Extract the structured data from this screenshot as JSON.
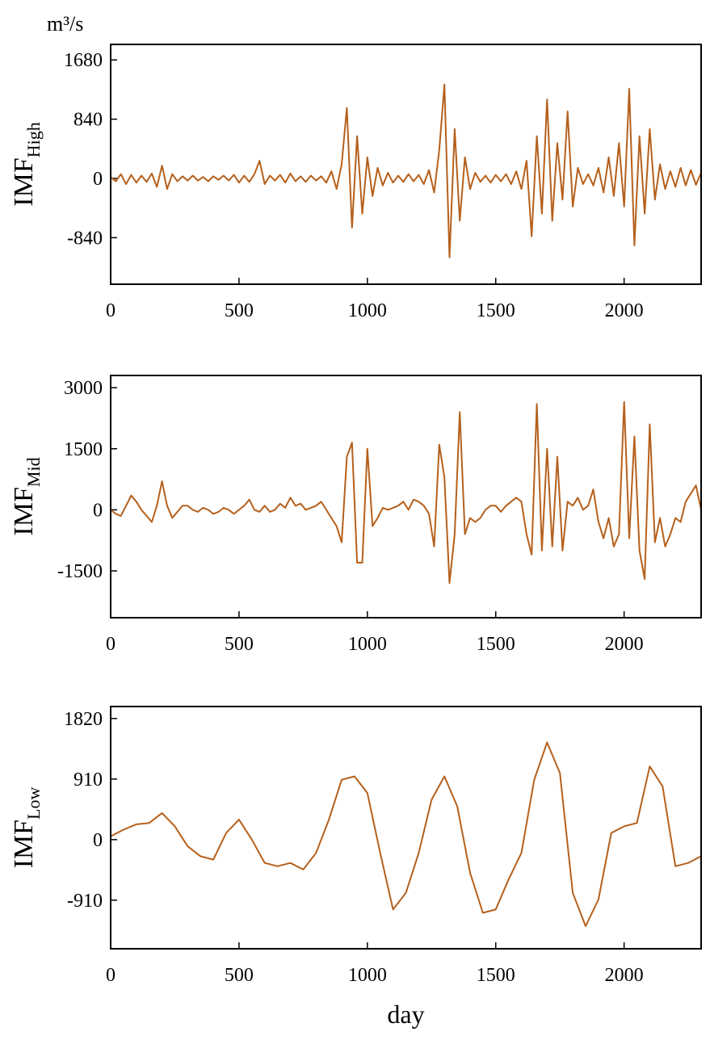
{
  "chart_data": [
    {
      "type": "line",
      "unit": "m³/s",
      "ylabel": "IMF",
      "ylabel_sub": "High",
      "color": "#b5601c",
      "xlim": [
        0,
        2300
      ],
      "xticks": [
        0,
        500,
        1000,
        1500,
        2000
      ],
      "ylim": [
        -1500,
        1900
      ],
      "yticks": [
        1680,
        840,
        0,
        -840
      ],
      "x": [
        0,
        20,
        40,
        60,
        80,
        100,
        120,
        140,
        160,
        180,
        200,
        220,
        240,
        260,
        280,
        300,
        320,
        340,
        360,
        380,
        400,
        420,
        440,
        460,
        480,
        500,
        520,
        540,
        560,
        580,
        600,
        620,
        640,
        660,
        680,
        700,
        720,
        740,
        760,
        780,
        800,
        820,
        840,
        860,
        880,
        900,
        920,
        940,
        960,
        980,
        1000,
        1020,
        1040,
        1060,
        1080,
        1100,
        1120,
        1140,
        1160,
        1180,
        1200,
        1220,
        1240,
        1260,
        1280,
        1300,
        1320,
        1340,
        1360,
        1380,
        1400,
        1420,
        1440,
        1460,
        1480,
        1500,
        1520,
        1540,
        1560,
        1580,
        1600,
        1620,
        1640,
        1660,
        1680,
        1700,
        1720,
        1740,
        1760,
        1780,
        1800,
        1820,
        1840,
        1860,
        1880,
        1900,
        1920,
        1940,
        1960,
        1980,
        2000,
        2020,
        2040,
        2060,
        2080,
        2100,
        2120,
        2140,
        2160,
        2180,
        2200,
        2220,
        2240,
        2260,
        2280,
        2300
      ],
      "values": [
        20,
        -40,
        60,
        -80,
        50,
        -60,
        40,
        -50,
        70,
        -120,
        180,
        -150,
        60,
        -40,
        30,
        -30,
        40,
        -30,
        20,
        -40,
        30,
        -20,
        40,
        -30,
        50,
        -60,
        40,
        -50,
        60,
        250,
        -80,
        40,
        -30,
        50,
        -60,
        70,
        -40,
        30,
        -50,
        40,
        -30,
        30,
        -60,
        100,
        -150,
        200,
        1000,
        -700,
        600,
        -500,
        300,
        -250,
        150,
        -100,
        80,
        -60,
        40,
        -50,
        60,
        -40,
        50,
        -80,
        120,
        -200,
        400,
        1330,
        -1120,
        700,
        -600,
        300,
        -150,
        80,
        -50,
        40,
        -60,
        50,
        -40,
        60,
        -80,
        100,
        -150,
        250,
        -820,
        600,
        -500,
        1120,
        -600,
        500,
        -300,
        950,
        -400,
        150,
        -80,
        60,
        -100,
        150,
        -200,
        300,
        -250,
        500,
        -400,
        1270,
        -950,
        600,
        -500,
        700,
        -300,
        200,
        -150,
        100,
        -120,
        150,
        -100,
        120,
        -90,
        80
      ]
    },
    {
      "type": "line",
      "ylabel": "IMF",
      "ylabel_sub": "Mid",
      "color": "#b5601c",
      "xlim": [
        0,
        2300
      ],
      "xticks": [
        0,
        500,
        1000,
        1500,
        2000
      ],
      "ylim": [
        -2650,
        3300
      ],
      "yticks": [
        3000,
        1500,
        0,
        -1500
      ],
      "x": [
        0,
        20,
        40,
        60,
        80,
        100,
        120,
        140,
        160,
        180,
        200,
        220,
        240,
        260,
        280,
        300,
        320,
        340,
        360,
        380,
        400,
        420,
        440,
        460,
        480,
        500,
        520,
        540,
        560,
        580,
        600,
        620,
        640,
        660,
        680,
        700,
        720,
        740,
        760,
        780,
        800,
        820,
        840,
        860,
        880,
        900,
        920,
        940,
        960,
        980,
        1000,
        1020,
        1040,
        1060,
        1080,
        1100,
        1120,
        1140,
        1160,
        1180,
        1200,
        1220,
        1240,
        1260,
        1280,
        1300,
        1320,
        1340,
        1360,
        1380,
        1400,
        1420,
        1440,
        1460,
        1480,
        1500,
        1520,
        1540,
        1560,
        1580,
        1600,
        1620,
        1640,
        1660,
        1680,
        1700,
        1720,
        1740,
        1760,
        1780,
        1800,
        1820,
        1840,
        1860,
        1880,
        1900,
        1920,
        1940,
        1960,
        1980,
        2000,
        2020,
        2040,
        2060,
        2080,
        2100,
        2120,
        2140,
        2160,
        2180,
        2200,
        2220,
        2240,
        2260,
        2280,
        2300
      ],
      "values": [
        0,
        -100,
        -150,
        100,
        350,
        200,
        0,
        -150,
        -300,
        100,
        700,
        100,
        -200,
        -50,
        100,
        100,
        0,
        -50,
        50,
        0,
        -100,
        -50,
        50,
        0,
        -100,
        0,
        100,
        250,
        0,
        -50,
        100,
        -50,
        0,
        150,
        50,
        300,
        100,
        150,
        0,
        50,
        100,
        200,
        0,
        -200,
        -400,
        -800,
        1300,
        1650,
        -1300,
        -1300,
        1500,
        -400,
        -200,
        50,
        0,
        50,
        100,
        200,
        0,
        250,
        200,
        100,
        -100,
        -900,
        1600,
        800,
        -1800,
        -600,
        2400,
        -600,
        -200,
        -300,
        -200,
        0,
        100,
        100,
        -50,
        100,
        200,
        300,
        200,
        -600,
        -1100,
        2600,
        -1000,
        1500,
        -900,
        1300,
        -1000,
        200,
        100,
        300,
        0,
        100,
        500,
        -300,
        -700,
        -200,
        -900,
        -600,
        2650,
        -700,
        1800,
        -1000,
        -1700,
        2100,
        -800,
        -200,
        -900,
        -600,
        -200,
        -300,
        200,
        400,
        600,
        0
      ]
    },
    {
      "type": "line",
      "ylabel": "IMF",
      "ylabel_sub": "Low",
      "xlabel": "day",
      "color": "#b5601c",
      "xlim": [
        0,
        2300
      ],
      "xticks": [
        0,
        500,
        1000,
        1500,
        2000
      ],
      "ylim": [
        -1640,
        2000
      ],
      "yticks": [
        1820,
        910,
        0,
        -910
      ],
      "x": [
        0,
        50,
        100,
        150,
        200,
        250,
        300,
        350,
        400,
        450,
        500,
        550,
        600,
        650,
        700,
        750,
        800,
        850,
        900,
        950,
        1000,
        1050,
        1100,
        1150,
        1200,
        1250,
        1300,
        1350,
        1400,
        1450,
        1500,
        1550,
        1600,
        1650,
        1700,
        1750,
        1800,
        1850,
        1900,
        1950,
        2000,
        2050,
        2100,
        2150,
        2200,
        2250,
        2300
      ],
      "values": [
        50,
        150,
        230,
        250,
        400,
        200,
        -100,
        -250,
        -300,
        100,
        300,
        0,
        -350,
        -400,
        -350,
        -450,
        -200,
        300,
        900,
        950,
        700,
        -200,
        -1050,
        -800,
        -200,
        600,
        950,
        500,
        -500,
        -1100,
        -1050,
        -600,
        -200,
        900,
        1460,
        1000,
        -800,
        -1300,
        -900,
        100,
        200,
        250,
        1100,
        800,
        -400,
        -350,
        -250
      ]
    }
  ]
}
